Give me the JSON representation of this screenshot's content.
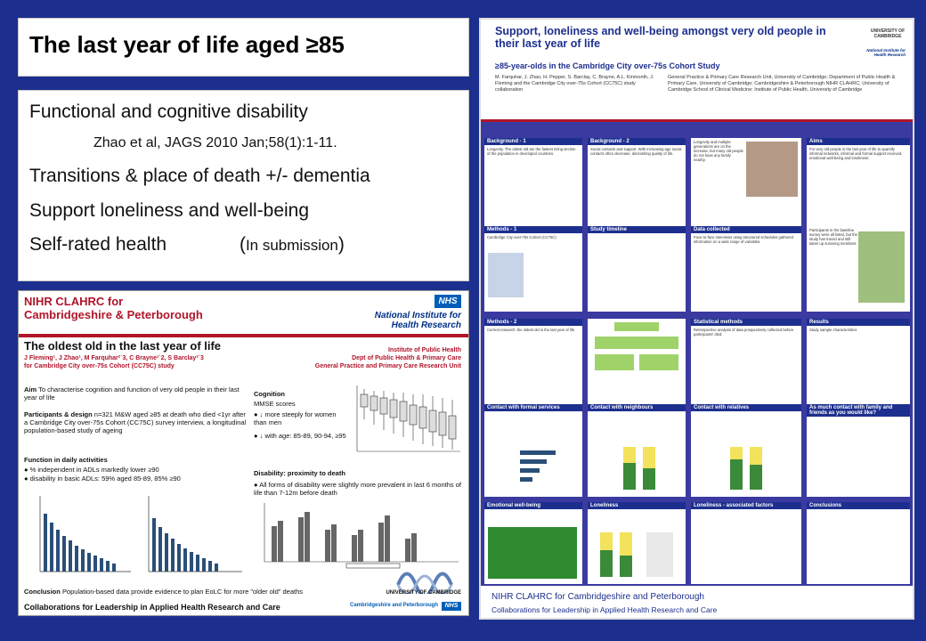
{
  "slide": {
    "title": "The last year of life aged ≥85",
    "items": [
      {
        "text": "Functional and cognitive disability"
      },
      {
        "ref": "Zhao et al, JAGS 2010 Jan;58(1):1-11."
      },
      {
        "text": "Transitions & place of death +/- dementia"
      },
      {
        "text": "Support loneliness and well-being"
      },
      {
        "text": "Self-rated health",
        "note_open": "(",
        "note": "In submission",
        "note_close": ")"
      }
    ]
  },
  "left_poster": {
    "org_line1": "NIHR CLAHRC for",
    "org_line2": "Cambridgeshire & Peterborough",
    "nhs": "NHS",
    "nihr1": "National Institute for",
    "nihr2": "Health Research",
    "title": "The oldest old in the last year of life",
    "authors": "J Fleming¹, J Zhao¹, M Farquhar²˙3, C Brayne¹˙2, S Barclay²˙3",
    "authors2": "for Cambridge City over-75s Cohort (CC75C) study",
    "inst1": "Institute of Public Health",
    "inst2": "Dept of Public Health & Primary Care",
    "inst3": "General Practice and Primary Care Research Unit",
    "aim_label": "Aim",
    "aim": "To characterise cognition and function of very old people in their last year of life",
    "pd_label": "Participants & design",
    "pd": "n=321 M&W aged ≥85 at death who died <1yr after a Cambridge City over-75s Cohort (CC75C) survey interview, a longitudinal population-based study of ageing",
    "fda": "Function in daily activities",
    "fda1": "% independent in ADLs markedly lower ≥90",
    "fda2": "disability in basic ADLs: 59% aged 85-89, 85% ≥90",
    "cog": "Cognition",
    "cog1": "MMSE scores",
    "cog2": "↓ more steeply for women than men",
    "cog3": "↓ with age: 85-89, 90-94, ≥95",
    "dis": "Disability: proximity to death",
    "dis1": "All forms of disability were slightly more prevalent in last 6 months of life than 7-12m before death",
    "concl_label": "Conclusion",
    "concl": "Population-based data provide evidence to plan EoLC for more \"older old\" deaths",
    "footer": "Collaborations for Leadership in Applied Health Research and Care",
    "cambridge": "UNIVERSITY OF CAMBRIDGE",
    "trust": "Cambridgeshire and Peterborough",
    "trust_nhs": "NHS"
  },
  "right_poster": {
    "title": "Support, loneliness and well-being amongst very old people in their last year of life",
    "subtitle": "≥85-year-olds in the Cambridge City over-75s Cohort Study",
    "authors": "M. Farquhar, J. Zhao, H. Pepper, S. Barclay, C. Brayne, A.L. Kinmonth, J. Fleming and the Cambridge City over-75s Cohort (CC75C) study collaboration",
    "affils": "General Practice & Primary Care Research Unit, University of Cambridge; Department of Public Health & Primary Care, University of Cambridge; Cambridgeshire & Peterborough NIHR CLAHRC; University of Cambridge School of Clinical Medicine; Institute of Public Health, University of Cambridge",
    "cambridge": "UNIVERSITY OF CAMBRIDGE",
    "nihr": "National Institute for Health Research",
    "panels": [
      {
        "h": "Background - 1",
        "b": "Longevity. The oldest old are the fastest rising section of the population in developed countries."
      },
      {
        "h": "Background - 2",
        "b": "Social contacts and support. With increasing age social contacts often decrease, diminishing quality of life."
      },
      {
        "h": "",
        "b": "Longevity and multiple generations are on the increase, but many old people do not have any family nearby."
      },
      {
        "h": "Aims",
        "b": "For very old people in the last year of life to quantify informal networks, informal and formal support received, emotional well-being and loneliness."
      },
      {
        "h": "Methods - 1",
        "b": "Cambridge City over-75s Cohort (CC75C)"
      },
      {
        "h": "Study timeline",
        "b": ""
      },
      {
        "h": "Data collected",
        "b": "Face-to-face interviews using structured schedules gathered information on a wide range of variables."
      },
      {
        "h": "",
        "b": "Participants in the baseline survey were all listed, but the study has traced and still taken up surviving members."
      },
      {
        "h": "Methods - 2",
        "b": "Current research: the oldest old in the last year of life"
      },
      {
        "h": "",
        "b": ""
      },
      {
        "h": "Statistical methods",
        "b": "Retrospective analysis of data prospectively collected before participants' died."
      },
      {
        "h": "Results",
        "b": "Study sample characteristics"
      },
      {
        "h": "Contact with formal services",
        "b": ""
      },
      {
        "h": "Contact with neighbours",
        "b": ""
      },
      {
        "h": "Contact with relatives",
        "b": ""
      },
      {
        "h": "As much contact with family and friends as you would like?",
        "b": ""
      },
      {
        "h": "Emotional well-being",
        "b": ""
      },
      {
        "h": "Loneliness",
        "b": ""
      },
      {
        "h": "Loneliness - associated factors",
        "b": ""
      },
      {
        "h": "Conclusions",
        "b": ""
      }
    ],
    "footer1": "NIHR CLAHRC for Cambridgeshire and Peterborough",
    "footer2": "Collaborations for Leadership in Applied Health Research and Care"
  }
}
